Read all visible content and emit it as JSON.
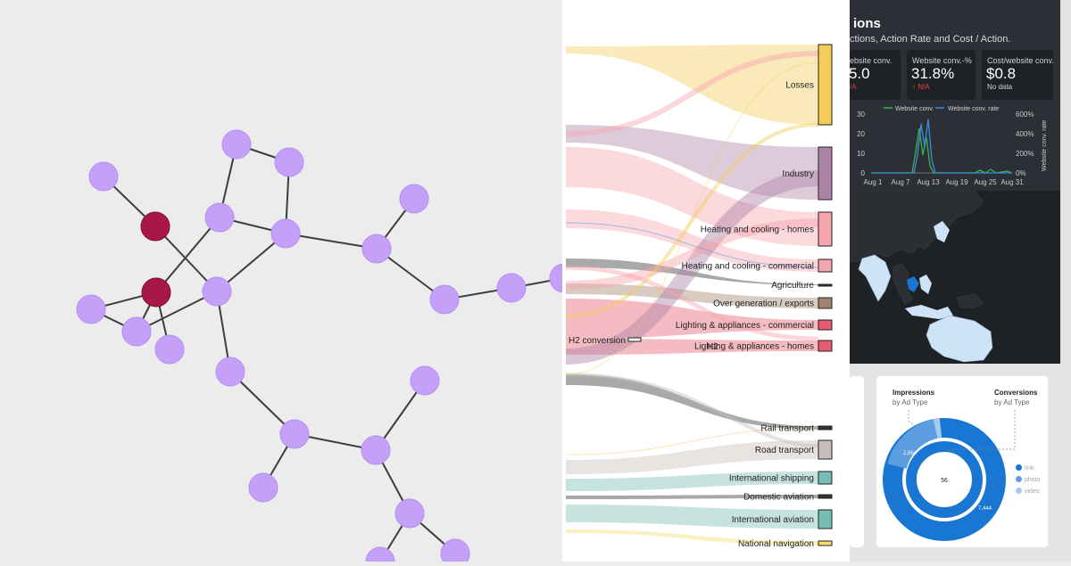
{
  "network": {
    "node_color": "#c4a0f8",
    "highlight_color": "#a8174a",
    "edge_color": "#3d3d3d"
  },
  "sankey": {
    "source_label": "H2 conversion",
    "overlap_label": "H2",
    "targets": [
      {
        "label": "Losses",
        "color": "#f4cc5a"
      },
      {
        "label": "Industry",
        "color": "#ad83a6"
      },
      {
        "label": "Heating and cooling - homes",
        "color": "#f6a4ad"
      },
      {
        "label": "Heating and cooling - commercial",
        "color": "#f6a4ad"
      },
      {
        "label": "Agriculture",
        "color": "#333333"
      },
      {
        "label": "Over generation / exports",
        "color": "#a1826e"
      },
      {
        "label": "Lighting & appliances - commercial",
        "color": "#e45c6d"
      },
      {
        "label": "Lighting & appliances - homes",
        "color": "#e45c6d"
      },
      {
        "label": "Rail transport",
        "color": "#333333"
      },
      {
        "label": "Road transport",
        "color": "#c8beb9"
      },
      {
        "label": "International shipping",
        "color": "#76bdb6"
      },
      {
        "label": "Domestic aviation",
        "color": "#333333"
      },
      {
        "label": "International aviation",
        "color": "#76bdb6"
      },
      {
        "label": "National navigation",
        "color": "#f4dd6a"
      }
    ]
  },
  "dashboard": {
    "title": "ions",
    "subtitle": "ctions, Action Rate and Cost / Action.",
    "kpis": [
      {
        "label": "ebsite conv.",
        "value": "5.0",
        "change": "/A",
        "change_color": "#e8483f"
      },
      {
        "label": "Website conv.-%",
        "value": "31.8%",
        "change": "↑ N/A",
        "change_color": "#e8483f"
      },
      {
        "label": "Cost/website conv.",
        "value": "$0.8",
        "change": "No data",
        "change_color": "#d0d3d6"
      }
    ],
    "chart": {
      "legend": [
        "Website conv.",
        "Website conv. rate"
      ],
      "series_colors": [
        "#39b54a",
        "#3d8bd9"
      ],
      "y_ticks": [
        "30",
        "20",
        "10",
        "0"
      ],
      "y2_ticks": [
        "600%",
        "400%",
        "200%",
        "0%"
      ],
      "y2_label": "Website conv. rate",
      "x_ticks": [
        "Aug 1",
        "Aug 7",
        "Aug 13",
        "Aug 19",
        "Aug 25",
        "Aug 31"
      ]
    },
    "donut": {
      "impressions_title": "Impressions",
      "impressions_sub": "by Ad Type",
      "conversions_title": "Conversions",
      "conversions_sub": "by Ad Type",
      "outer_labels": [
        "2,864",
        "7,444"
      ],
      "inner_label": "56",
      "legend": [
        {
          "label": "link",
          "color": "#1976d2"
        },
        {
          "label": "photo",
          "color": "#5b9de0"
        },
        {
          "label": "video",
          "color": "#a7c9ee"
        }
      ]
    }
  }
}
